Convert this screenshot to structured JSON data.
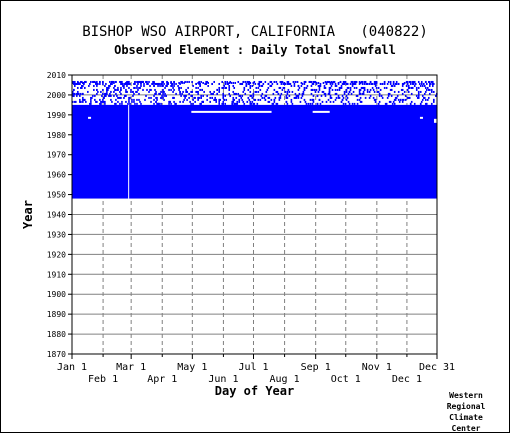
{
  "header": {
    "title": "BISHOP WSO AIRPORT, CALIFORNIA   (040822)",
    "subtitle": "Observed Element : Daily Total Snowfall"
  },
  "credit": [
    "Western",
    "Regional",
    "Climate",
    "Center"
  ],
  "colors": {
    "data": "#0000ff",
    "grid": "#808080",
    "axis": "#000000"
  },
  "chart_data": {
    "type": "scatter",
    "title": "Observed Element : Daily Total Snowfall",
    "xlabel": "Day of Year",
    "ylabel": "Year",
    "xlim": [
      1,
      365
    ],
    "ylim": [
      1870,
      2010
    ],
    "x_ticks_top": [
      "Jan 1",
      "Mar 1",
      "May 1",
      "Jul 1",
      "Sep 1",
      "Nov 1",
      "Dec 31"
    ],
    "x_ticks_bottom": [
      "Feb 1",
      "Apr 1",
      "Jun 1",
      "Aug 1",
      "Oct 1",
      "Dec 1"
    ],
    "x_tick_days_top": [
      1,
      60,
      121,
      182,
      244,
      305,
      365
    ],
    "x_tick_days_bottom": [
      32,
      91,
      152,
      213,
      274,
      335
    ],
    "y_ticks": [
      1870,
      1880,
      1890,
      1900,
      1910,
      1920,
      1930,
      1940,
      1950,
      1960,
      1970,
      1980,
      1990,
      2000,
      2010
    ],
    "grid": true,
    "series": [
      {
        "record_start_year": 1948,
        "dense_end_year": 1994,
        "sparse_end_year": 2006
      }
    ]
  }
}
